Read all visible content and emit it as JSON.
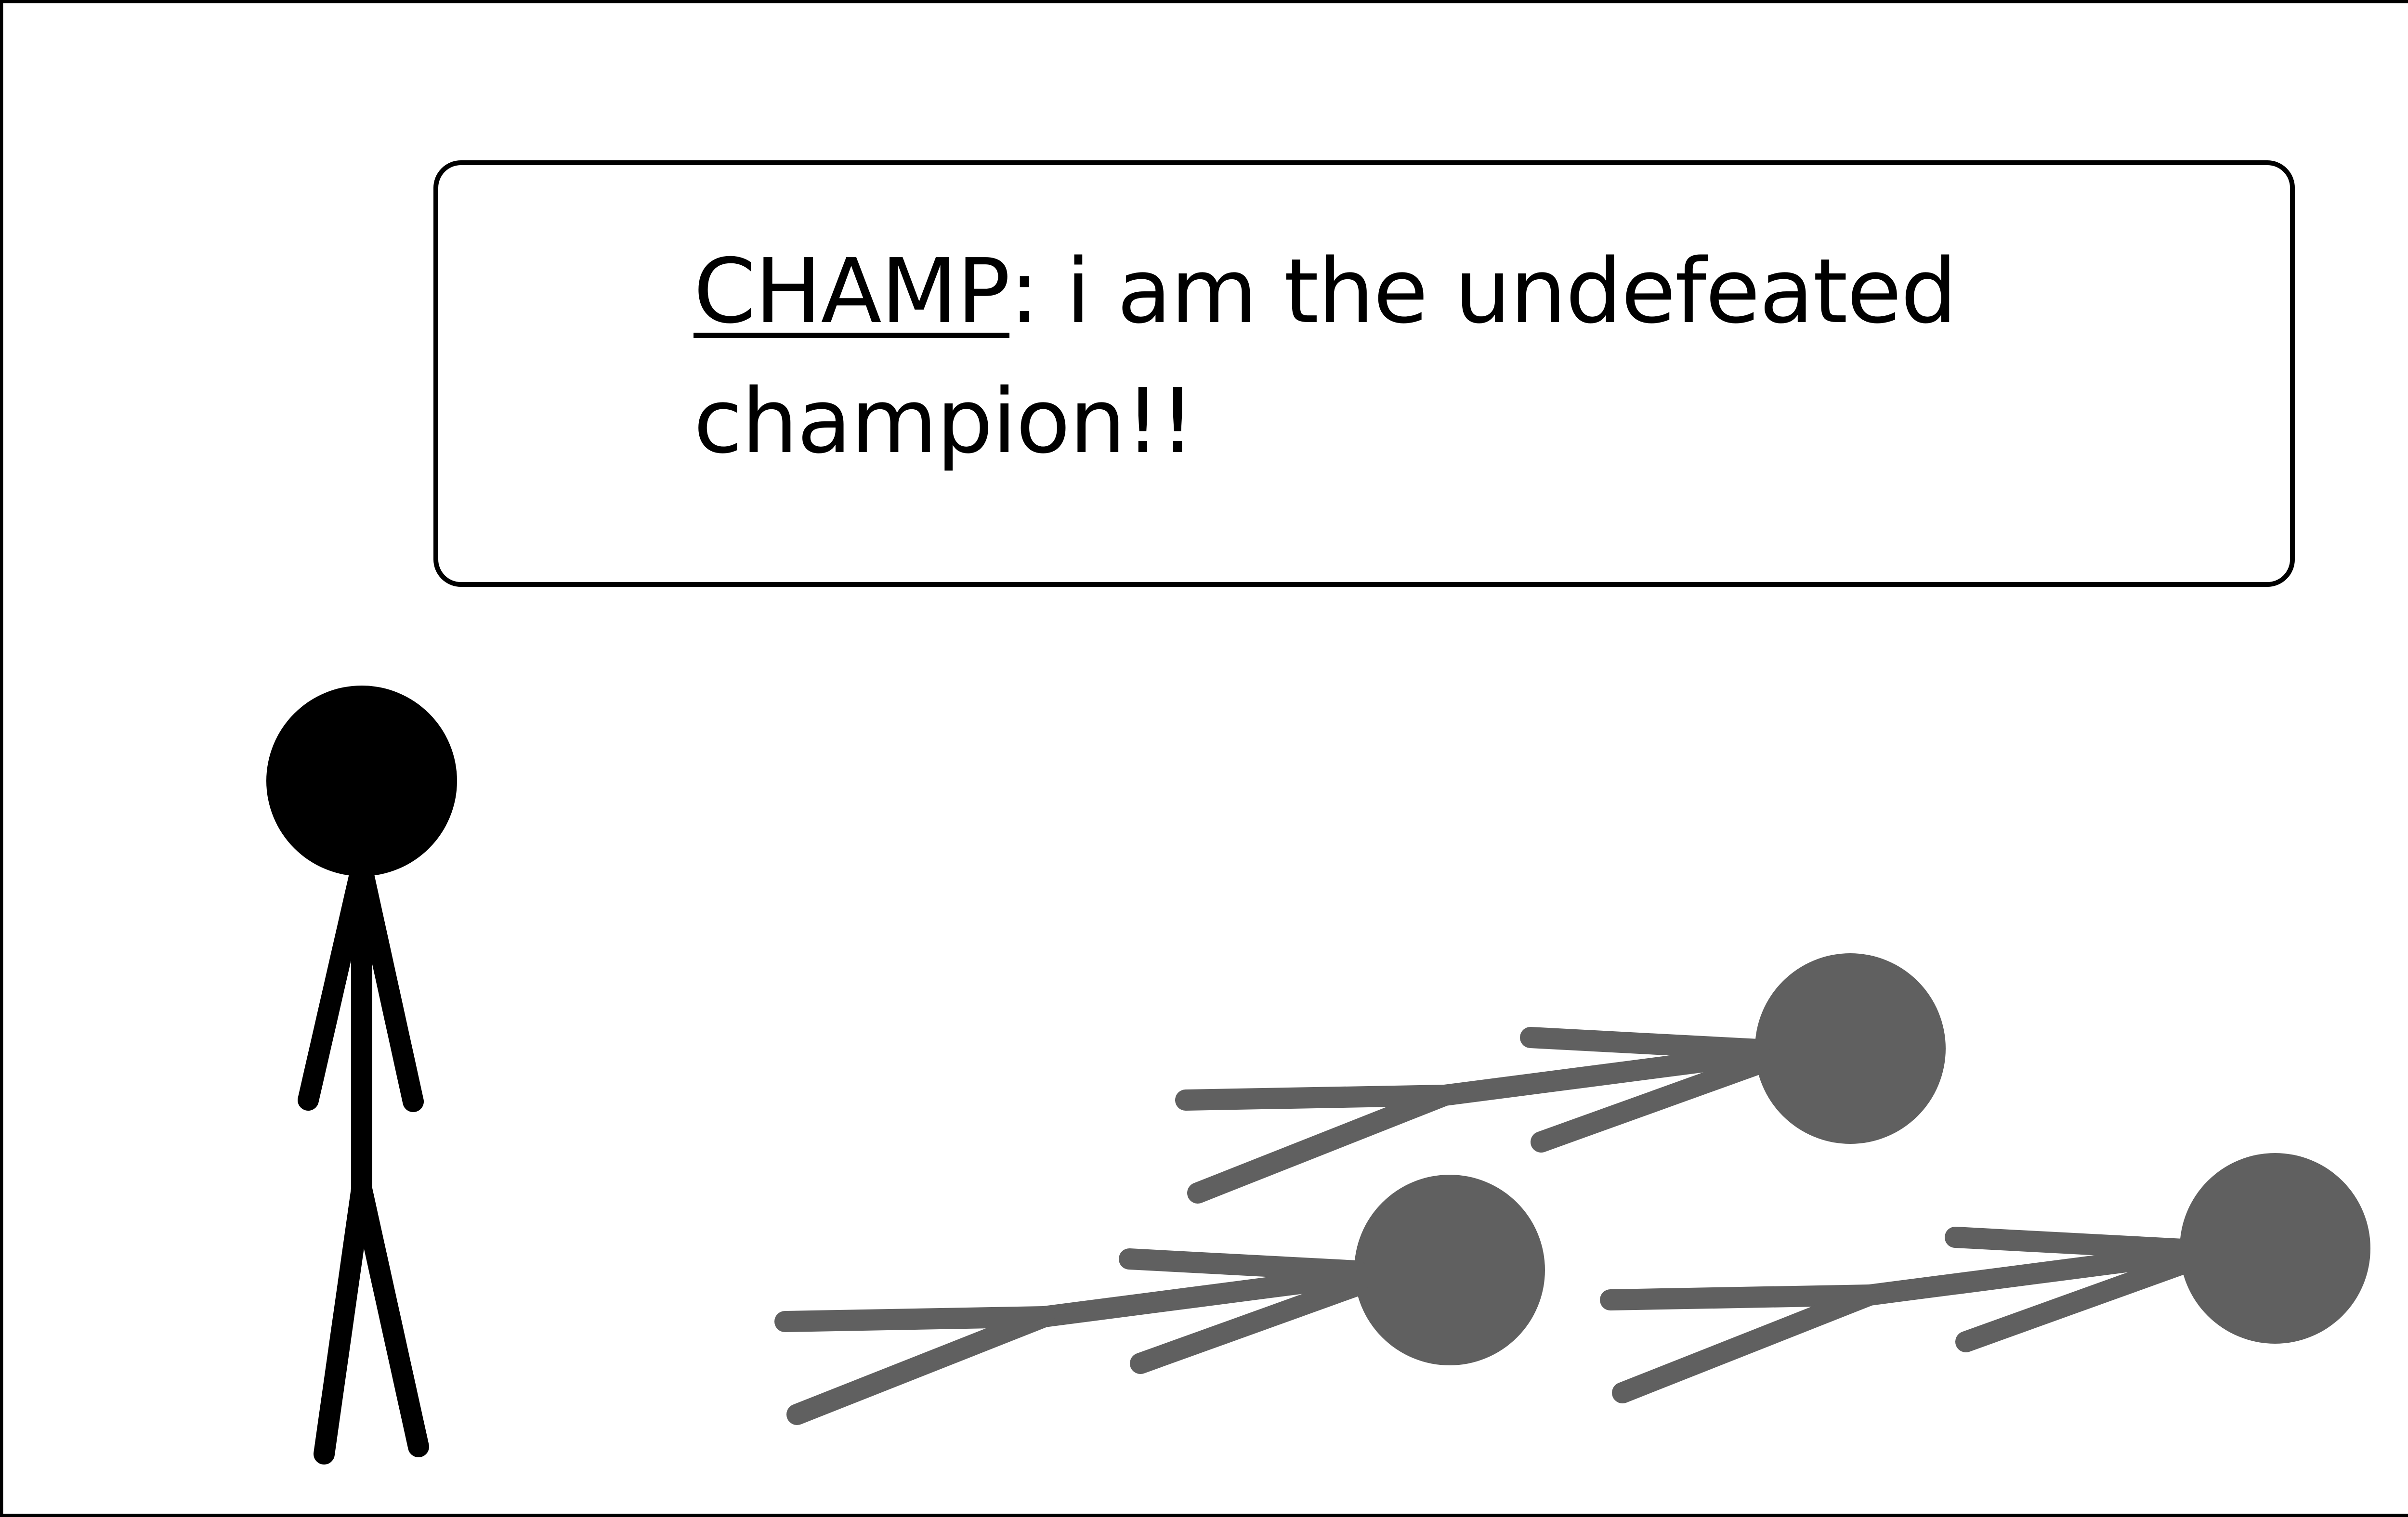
{
  "comic": {
    "speech": {
      "speaker": "CHAMP",
      "separator": ":",
      "line1": " i am the undefeated",
      "line2": "champion!!"
    }
  },
  "colors": {
    "frame": "#000000",
    "champion": "#000000",
    "defeated": "#606060",
    "background": "#ffffff"
  }
}
